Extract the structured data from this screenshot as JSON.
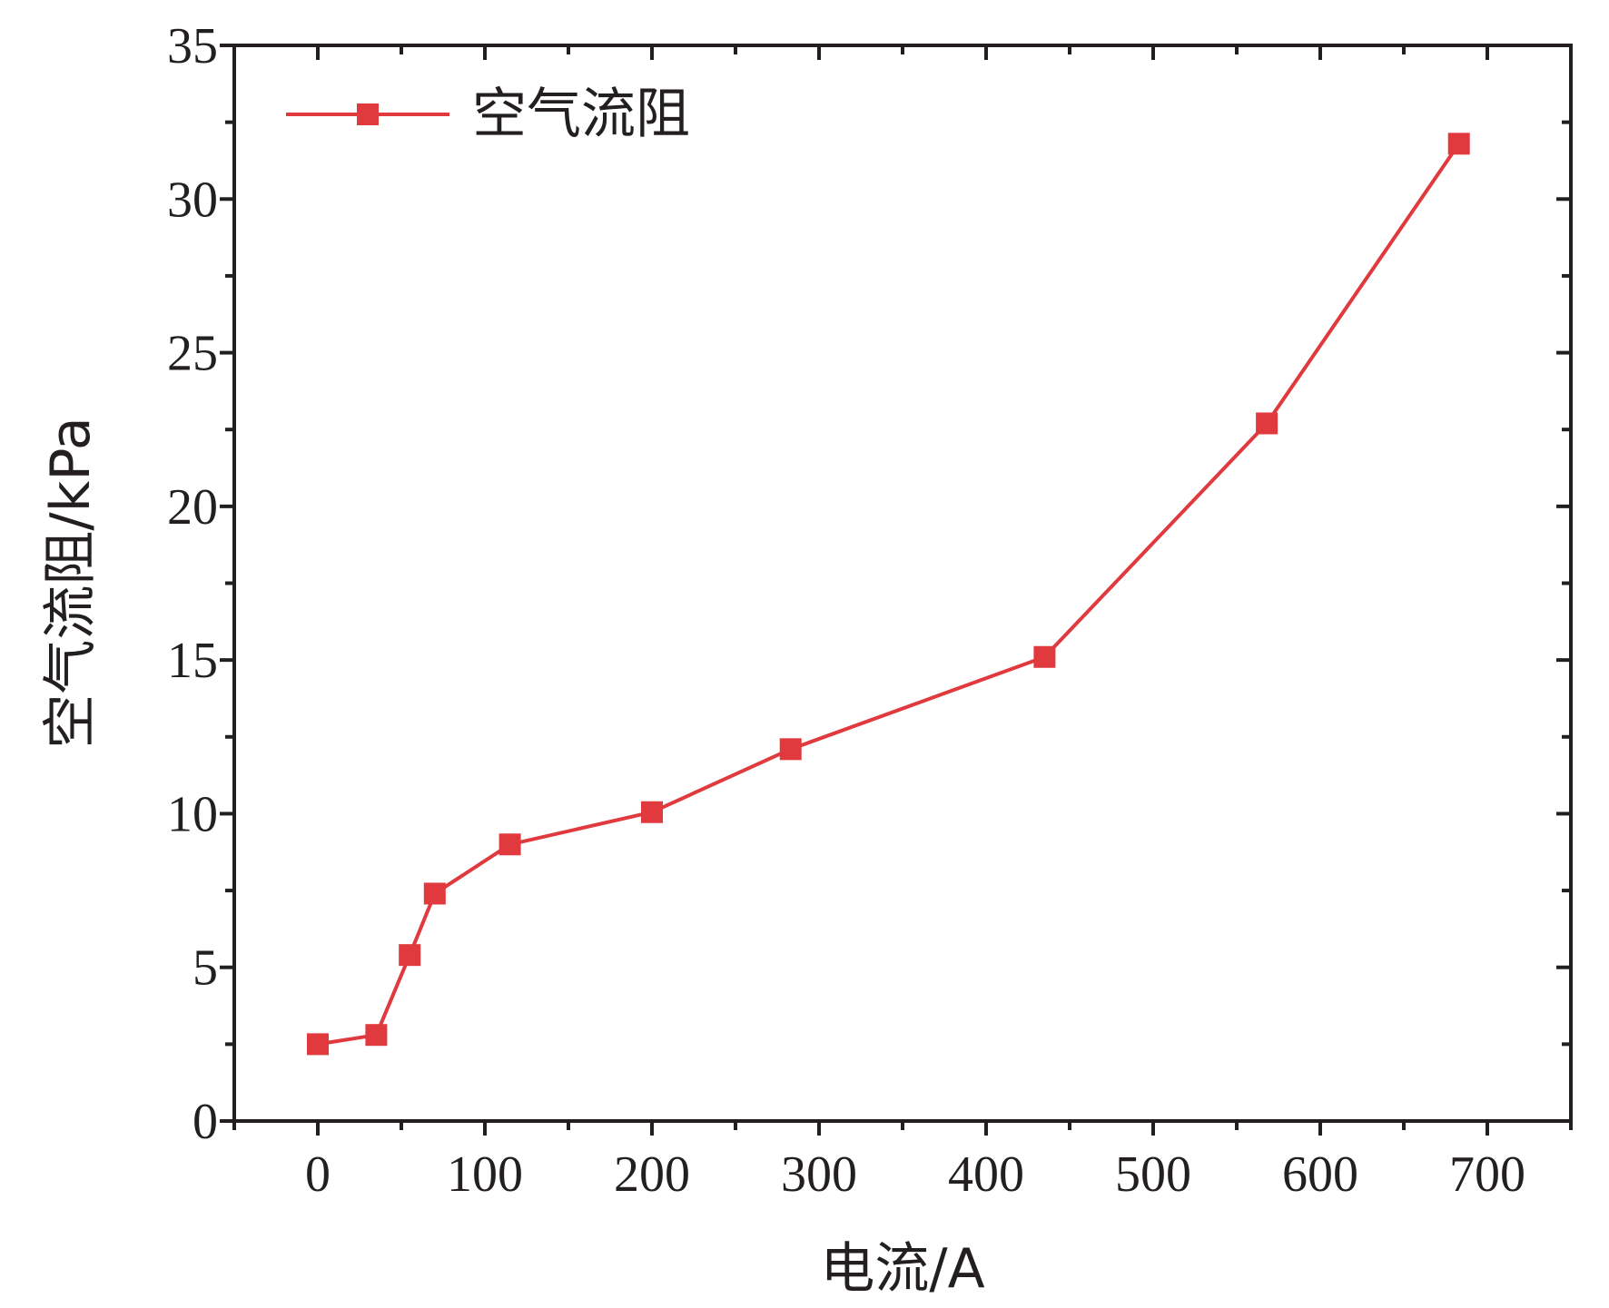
{
  "chart_data": {
    "type": "line",
    "x": [
      0,
      35,
      55,
      70,
      115,
      200,
      283,
      435,
      568,
      683
    ],
    "series": [
      {
        "name": "空气流阻",
        "values": [
          2.5,
          2.8,
          5.4,
          7.4,
          9.0,
          10.05,
          12.1,
          15.1,
          22.7,
          31.8
        ],
        "color": "#e0393e",
        "marker": "square"
      }
    ],
    "xlabel": "电流/A",
    "ylabel": "空气流阻/kPa",
    "xlim": [
      -50,
      750
    ],
    "ylim": [
      0,
      35
    ],
    "xticks": [
      "0",
      "100",
      "200",
      "300",
      "400",
      "500",
      "600",
      "700"
    ],
    "yticks": [
      "0",
      "5",
      "10",
      "15",
      "20",
      "25",
      "30",
      "35"
    ],
    "legend": "top-left",
    "grid": false
  }
}
